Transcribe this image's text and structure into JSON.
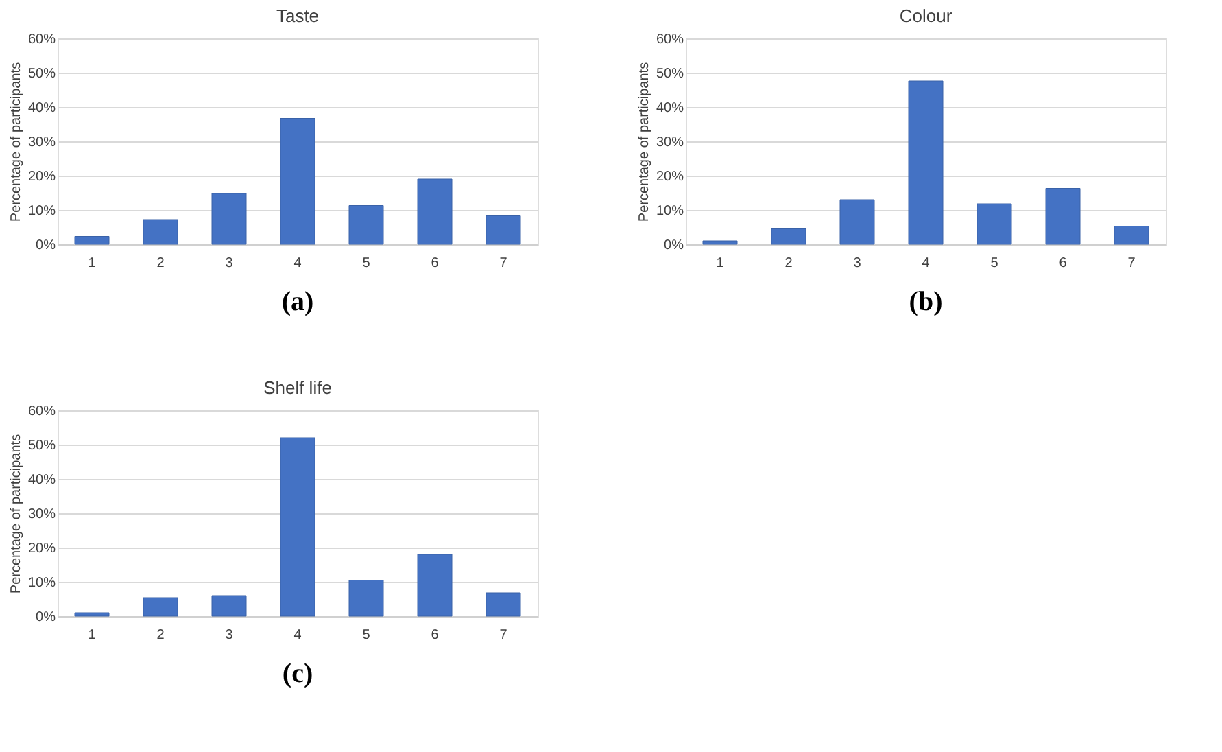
{
  "chart_data": [
    {
      "type": "bar",
      "title": "Taste",
      "ylabel": "Percentage of participants",
      "categories": [
        "1",
        "2",
        "3",
        "4",
        "5",
        "6",
        "7"
      ],
      "values": [
        2.3,
        7.2,
        14.8,
        36.7,
        11.3,
        19.0,
        8.3
      ],
      "color": "#4472c4",
      "ylim": [
        0,
        60
      ],
      "yticks": [
        {
          "value": 0,
          "label": "0%"
        },
        {
          "value": 10,
          "label": "10%"
        },
        {
          "value": 20,
          "label": "20%"
        },
        {
          "value": 30,
          "label": "30%"
        },
        {
          "value": 40,
          "label": "40%"
        },
        {
          "value": 50,
          "label": "50%"
        },
        {
          "value": 60,
          "label": "60%"
        }
      ],
      "grid": "y",
      "annotations": [
        "(a)"
      ]
    },
    {
      "type": "bar",
      "title": "Colour",
      "ylabel": "Percentage of participants",
      "categories": [
        "1",
        "2",
        "3",
        "4",
        "5",
        "6",
        "7"
      ],
      "values": [
        1.0,
        4.5,
        13.0,
        47.6,
        11.8,
        16.3,
        5.3
      ],
      "color": "#4472c4",
      "ylim": [
        0,
        60
      ],
      "yticks": [
        {
          "value": 0,
          "label": "0%"
        },
        {
          "value": 10,
          "label": "10%"
        },
        {
          "value": 20,
          "label": "20%"
        },
        {
          "value": 30,
          "label": "30%"
        },
        {
          "value": 40,
          "label": "40%"
        },
        {
          "value": 50,
          "label": "50%"
        },
        {
          "value": 60,
          "label": "60%"
        }
      ],
      "grid": "y",
      "annotations": [
        "(b)"
      ]
    },
    {
      "type": "bar",
      "title": "Shelf life",
      "ylabel": "Percentage of participants",
      "categories": [
        "1",
        "2",
        "3",
        "4",
        "5",
        "6",
        "7"
      ],
      "values": [
        1.0,
        5.4,
        6.0,
        52.0,
        10.5,
        18.0,
        6.8
      ],
      "color": "#4472c4",
      "ylim": [
        0,
        60
      ],
      "yticks": [
        {
          "value": 0,
          "label": "0%"
        },
        {
          "value": 10,
          "label": "10%"
        },
        {
          "value": 20,
          "label": "20%"
        },
        {
          "value": 30,
          "label": "30%"
        },
        {
          "value": 40,
          "label": "40%"
        },
        {
          "value": 50,
          "label": "50%"
        },
        {
          "value": 60,
          "label": "60%"
        }
      ],
      "grid": "y",
      "annotations": [
        "(c)"
      ]
    }
  ]
}
